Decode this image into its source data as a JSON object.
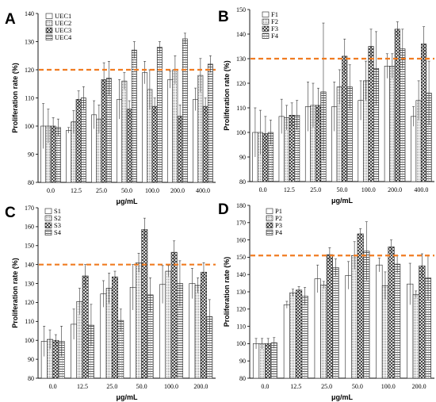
{
  "colors": {
    "threshold_line": "#f07c22",
    "bar_stroke": "#222222",
    "axis": "#000000"
  },
  "chart_data": [
    {
      "panel": "A",
      "type": "bar",
      "categories": [
        "0.0",
        "12.5",
        "25.0",
        "50.0",
        "100.0",
        "200.0",
        "400.0"
      ],
      "series": [
        {
          "name": "UEC1",
          "pattern": "blank",
          "values": [
            100,
            98.5,
            104,
            109.5,
            119,
            116.5,
            109.5
          ],
          "errors": [
            8,
            1,
            5,
            7,
            4,
            3,
            4
          ]
        },
        {
          "name": "UEC2",
          "pattern": "dots",
          "values": [
            100,
            101.5,
            102.5,
            116,
            113,
            120,
            118
          ],
          "errors": [
            6,
            4,
            5,
            3,
            7,
            5,
            6
          ]
        },
        {
          "name": "UEC3",
          "pattern": "cross",
          "values": [
            100,
            109.5,
            116.5,
            106,
            107,
            103.5,
            107
          ],
          "errors": [
            3,
            3,
            6,
            3,
            3,
            4,
            3
          ]
        },
        {
          "name": "UEC4",
          "pattern": "grid",
          "values": [
            99.5,
            110,
            117,
            127,
            128,
            131,
            122
          ],
          "errors": [
            3,
            4,
            6,
            3,
            2,
            2,
            3
          ]
        }
      ],
      "ylabel": "Proliferation rate (%)",
      "xlabel": "μg/mL",
      "ylim": [
        80,
        140
      ],
      "yticks": [
        80,
        90,
        100,
        110,
        120,
        130,
        140
      ],
      "threshold": 120,
      "legend": "top-left"
    },
    {
      "panel": "B",
      "type": "bar",
      "categories": [
        "0.0",
        "12.5",
        "25.0",
        "50.0",
        "100.0",
        "200.0",
        "400.0"
      ],
      "series": [
        {
          "name": "F1",
          "pattern": "blank",
          "values": [
            100,
            106.5,
            110.5,
            110.5,
            113,
            127,
            106.5
          ],
          "errors": [
            10,
            7,
            10,
            10,
            8,
            5,
            4
          ]
        },
        {
          "name": "F2",
          "pattern": "dots",
          "values": [
            100,
            106,
            111,
            118.5,
            121,
            127,
            113
          ],
          "errors": [
            9,
            5,
            9,
            7,
            8,
            5,
            8
          ]
        },
        {
          "name": "F3",
          "pattern": "cross",
          "values": [
            99.5,
            107,
            111,
            131,
            135,
            142,
            136
          ],
          "errors": [
            7,
            5,
            7,
            7,
            7,
            3,
            7
          ]
        },
        {
          "name": "F4",
          "pattern": "grid",
          "values": [
            100,
            107,
            116.5,
            118.5,
            126,
            134,
            116
          ],
          "errors": [
            5,
            6,
            28,
            9,
            15,
            8,
            13
          ]
        }
      ],
      "ylabel": "Proliferation rate (%)",
      "xlabel": "μg/mL",
      "ylim": [
        80,
        150
      ],
      "yticks": [
        80,
        90,
        100,
        110,
        120,
        130,
        140,
        150
      ],
      "threshold": 130,
      "legend": "top-left"
    },
    {
      "panel": "C",
      "type": "bar",
      "categories": [
        "0.0",
        "12.5",
        "25.0",
        "50.0",
        "100.0",
        "200.0"
      ],
      "series": [
        {
          "name": "S1",
          "pattern": "blank",
          "values": [
            99.5,
            108.5,
            124.5,
            128,
            129.5,
            130
          ],
          "errors": [
            8,
            8,
            7,
            12,
            10,
            8
          ]
        },
        {
          "name": "S2",
          "pattern": "dots",
          "values": [
            100.5,
            120.5,
            127.5,
            141,
            136.5,
            129
          ],
          "errors": [
            5,
            7,
            8,
            5,
            3,
            4
          ]
        },
        {
          "name": "S3",
          "pattern": "cross",
          "values": [
            100,
            134,
            133.5,
            158.5,
            146.5,
            136
          ],
          "errors": [
            3,
            6,
            3,
            6,
            6,
            5
          ]
        },
        {
          "name": "S4",
          "pattern": "grid",
          "values": [
            99.5,
            108,
            110.5,
            124,
            130,
            112.5
          ],
          "errors": [
            8,
            11,
            6,
            9,
            12,
            9
          ]
        }
      ],
      "ylabel": "Proliferation rate (%)",
      "xlabel": "μg/mL",
      "ylim": [
        80,
        170
      ],
      "yticks": [
        80,
        90,
        100,
        110,
        120,
        130,
        140,
        150,
        160,
        170
      ],
      "threshold": 140,
      "legend": "top-left"
    },
    {
      "panel": "D",
      "type": "bar",
      "categories": [
        "0.0",
        "12.5",
        "25.0",
        "50.0",
        "100.0",
        "200.0"
      ],
      "series": [
        {
          "name": "P1",
          "pattern": "blank",
          "values": [
            100,
            122.5,
            137.5,
            139.5,
            145.5,
            134.5
          ],
          "errors": [
            3,
            2,
            8,
            8,
            4,
            12
          ]
        },
        {
          "name": "P2",
          "pattern": "dots",
          "values": [
            100,
            129.5,
            134,
            151,
            133.5,
            128.5
          ],
          "errors": [
            3,
            2,
            2,
            8,
            8,
            2
          ]
        },
        {
          "name": "P3",
          "pattern": "cross",
          "values": [
            100,
            131,
            151.5,
            163.5,
            156,
            145
          ],
          "errors": [
            3,
            2,
            4,
            3,
            4,
            7
          ]
        },
        {
          "name": "P4",
          "pattern": "grid",
          "values": [
            100.5,
            127.5,
            144,
            153.5,
            146,
            138
          ],
          "errors": [
            3,
            5,
            5,
            17,
            5,
            13
          ]
        }
      ],
      "ylabel": "Proliferation rate (%)",
      "xlabel": "μg/mL",
      "ylim": [
        80,
        180
      ],
      "yticks": [
        80,
        90,
        100,
        110,
        120,
        130,
        140,
        150,
        160,
        170,
        180
      ],
      "threshold": 151,
      "legend": "top-left"
    }
  ]
}
